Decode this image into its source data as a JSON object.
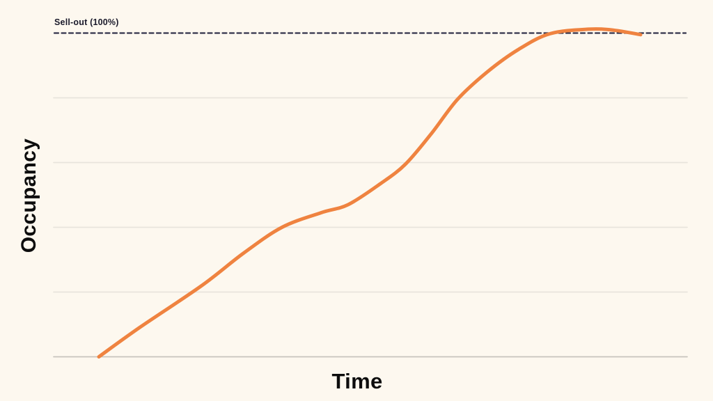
{
  "page": {
    "background_color": "#fdf8ef"
  },
  "chart_data": {
    "type": "line",
    "title": "",
    "xlabel": "Time",
    "ylabel": "Occupancy",
    "x_axis": {
      "ticks": [],
      "range": [
        0,
        100
      ]
    },
    "y_axis": {
      "ticks": [],
      "range_pct": [
        0,
        105
      ],
      "gridline_pcts": [
        0,
        20,
        40,
        60,
        80
      ]
    },
    "grid": "horizontal-only",
    "legend": "none",
    "threshold_line": {
      "label": "Sell-out (100%)",
      "value_pct": 100,
      "style": "dashed",
      "color": "#32324a"
    },
    "series": [
      {
        "name": "Occupancy",
        "color": "#ef8340",
        "stroke_width": 5,
        "points_t_pct": [
          [
            0,
            0
          ],
          [
            7.5,
            9
          ],
          [
            19,
            22
          ],
          [
            26.7,
            32
          ],
          [
            33.8,
            40
          ],
          [
            41,
            44.5
          ],
          [
            46,
            47
          ],
          [
            52,
            53.5
          ],
          [
            56.6,
            59.5
          ],
          [
            61.4,
            69
          ],
          [
            66.2,
            79.5
          ],
          [
            71.7,
            88
          ],
          [
            77.5,
            95
          ],
          [
            83.3,
            99.8
          ],
          [
            90.4,
            101.2
          ],
          [
            95,
            100.9
          ],
          [
            100,
            99.5
          ]
        ]
      }
    ]
  },
  "colors": {
    "background": "#fdf8ef",
    "gridline": "#e8e4dc",
    "axis_line": "#c7c4bd",
    "series_orange": "#ef8340",
    "threshold": "#32324a",
    "label_text": "#0d0d0d",
    "sellout_text": "#1a1a2b"
  }
}
